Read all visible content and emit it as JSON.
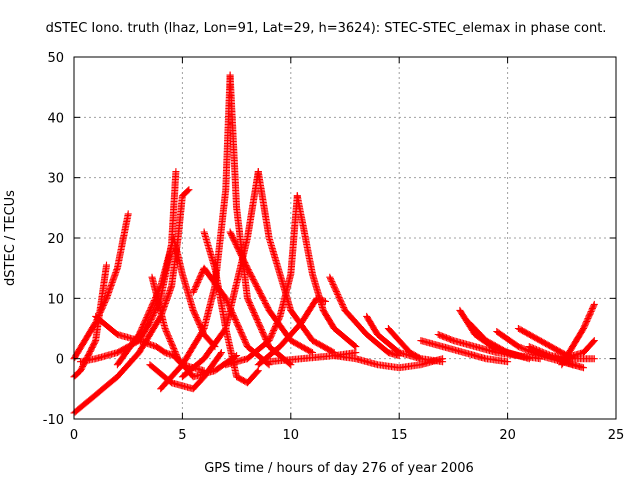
{
  "chart_data": {
    "type": "scatter",
    "title": "dSTEC Iono. truth (lhaz, Lon=91, Lat=29, h=3624): STEC-STEC_elemax in phase cont.",
    "xlabel": "GPS time / hours of day 276 of year 2006",
    "ylabel": "dSTEC  / TECUs",
    "xlim": [
      0,
      25
    ],
    "ylim": [
      -10,
      50
    ],
    "xticks": [
      0,
      5,
      10,
      15,
      20,
      25
    ],
    "yticks": [
      -10,
      0,
      10,
      20,
      30,
      40,
      50
    ],
    "grid": true,
    "marker": "+",
    "color": "#ff0000",
    "series": [
      {
        "x": [
          0.0,
          0.5,
          1.0,
          1.5,
          2.0,
          2.5
        ],
        "y": [
          0.0,
          3.0,
          6.0,
          10.0,
          15.0,
          24.0
        ]
      },
      {
        "x": [
          0.0,
          0.3,
          1.0,
          1.5
        ],
        "y": [
          -3.0,
          -2.0,
          3.0,
          15.5
        ]
      },
      {
        "x": [
          0.0,
          1.0,
          2.0,
          3.0,
          4.0,
          4.5,
          4.8,
          5.0,
          5.3
        ],
        "y": [
          -9.0,
          -6.0,
          -3.0,
          1.0,
          7.0,
          12.0,
          20.0,
          27.0,
          28.0
        ]
      },
      {
        "x": [
          0.3,
          1.0,
          2.0,
          3.0,
          3.5,
          4.0,
          4.5,
          4.7
        ],
        "y": [
          -0.5,
          0.0,
          1.0,
          3.0,
          6.0,
          10.0,
          19.0,
          31.0
        ]
      },
      {
        "x": [
          1.0,
          2.0,
          3.0,
          3.8,
          4.2,
          4.6,
          5.0,
          6.0
        ],
        "y": [
          7.0,
          4.0,
          3.0,
          2.0,
          1.0,
          0.5,
          -1.0,
          -2.0
        ]
      },
      {
        "x": [
          2.0,
          3.0,
          4.0,
          4.6,
          5.0,
          5.5,
          6.0,
          6.5
        ],
        "y": [
          -1.0,
          4.0,
          12.0,
          20.0,
          14.0,
          8.0,
          4.0,
          2.0
        ]
      },
      {
        "x": [
          3.6,
          4.2,
          4.8,
          5.5,
          6.5,
          7.5
        ],
        "y": [
          13.5,
          5.0,
          0.0,
          -3.0,
          -2.0,
          0.5
        ]
      },
      {
        "x": [
          3.5,
          4.5,
          5.5,
          6.0,
          6.8
        ],
        "y": [
          -1.0,
          -4.0,
          -5.0,
          -3.0,
          1.0
        ]
      },
      {
        "x": [
          4.0,
          5.0,
          6.0,
          6.5,
          7.0,
          7.2
        ],
        "y": [
          -5.0,
          -1.0,
          5.0,
          12.0,
          28.0,
          47.0
        ]
      },
      {
        "x": [
          7.2,
          7.5,
          8.0,
          9.0,
          10.0
        ],
        "y": [
          47.0,
          25.0,
          10.0,
          2.0,
          -1.0
        ]
      },
      {
        "x": [
          5.5,
          6.0,
          7.0,
          8.0,
          9.0
        ],
        "y": [
          11.0,
          15.0,
          10.0,
          2.0,
          -1.0
        ]
      },
      {
        "x": [
          5.0,
          6.0,
          7.0,
          8.0,
          8.5
        ],
        "y": [
          -3.0,
          0.0,
          5.0,
          20.0,
          31.0
        ]
      },
      {
        "x": [
          6.0,
          6.5,
          7.0,
          7.5,
          8.0,
          8.5
        ],
        "y": [
          21.0,
          15.0,
          5.0,
          -3.0,
          -4.0,
          -2.0
        ]
      },
      {
        "x": [
          8.5,
          9.0,
          10.0,
          11.0,
          12.0
        ],
        "y": [
          31.0,
          20.0,
          8.0,
          3.0,
          1.0
        ]
      },
      {
        "x": [
          7.2,
          8.0,
          9.0,
          10.0,
          11.0
        ],
        "y": [
          21.0,
          15.0,
          8.0,
          3.0,
          1.0
        ]
      },
      {
        "x": [
          7.0,
          8.0,
          9.0,
          9.5,
          10.0,
          10.3
        ],
        "y": [
          -1.0,
          0.0,
          3.0,
          7.0,
          14.0,
          27.0
        ]
      },
      {
        "x": [
          10.3,
          11.0,
          11.5,
          12.0,
          13.0
        ],
        "y": [
          27.0,
          14.0,
          8.0,
          5.0,
          2.0
        ]
      },
      {
        "x": [
          8.5,
          9.5,
          10.5,
          11.2,
          11.6
        ],
        "y": [
          -1.0,
          2.0,
          6.0,
          10.0,
          9.5
        ]
      },
      {
        "x": [
          11.8,
          12.5,
          13.5,
          14.5,
          15.0
        ],
        "y": [
          13.5,
          8.0,
          4.0,
          1.0,
          0.5
        ]
      },
      {
        "x": [
          9.0,
          10.5,
          12.0,
          13.0
        ],
        "y": [
          -0.5,
          0.0,
          0.5,
          1.0
        ]
      },
      {
        "x": [
          12.0,
          13.0,
          14.0,
          15.0,
          16.0,
          17.0
        ],
        "y": [
          0.5,
          0.0,
          -1.0,
          -1.5,
          -1.0,
          0.0
        ]
      },
      {
        "x": [
          13.5,
          14.0,
          15.0,
          16.0,
          17.0
        ],
        "y": [
          7.0,
          4.0,
          1.0,
          0.0,
          -0.5
        ]
      },
      {
        "x": [
          14.5,
          15.0,
          15.5,
          16.0
        ],
        "y": [
          5.0,
          3.0,
          1.0,
          0.0
        ]
      },
      {
        "x": [
          16.0,
          17.0,
          18.0,
          19.0,
          20.0
        ],
        "y": [
          3.0,
          2.0,
          1.0,
          0.0,
          -0.5
        ]
      },
      {
        "x": [
          16.8,
          17.5,
          18.5,
          19.5,
          20.5
        ],
        "y": [
          4.0,
          3.0,
          2.0,
          1.0,
          0.5
        ]
      },
      {
        "x": [
          17.8,
          18.5,
          19.5,
          20.5,
          21.5
        ],
        "y": [
          8.0,
          4.0,
          1.5,
          0.5,
          0.0
        ]
      },
      {
        "x": [
          18.2,
          19.0,
          20.0,
          21.0
        ],
        "y": [
          6.0,
          3.0,
          1.0,
          0.0
        ]
      },
      {
        "x": [
          19.5,
          20.5,
          21.5,
          22.5,
          23.0
        ],
        "y": [
          4.5,
          2.0,
          0.5,
          -0.5,
          -1.0
        ]
      },
      {
        "x": [
          20.5,
          21.5,
          22.5,
          23.0
        ],
        "y": [
          5.0,
          3.0,
          1.0,
          0.0
        ]
      },
      {
        "x": [
          21.0,
          22.0,
          23.0,
          23.5
        ],
        "y": [
          2.0,
          0.5,
          -1.0,
          -1.5
        ]
      },
      {
        "x": [
          22.5,
          23.0,
          23.5,
          24.0
        ],
        "y": [
          -1.0,
          2.0,
          5.0,
          9.0
        ]
      },
      {
        "x": [
          22.5,
          23.5,
          24.0
        ],
        "y": [
          0.0,
          1.0,
          3.0
        ]
      },
      {
        "x": [
          22.0,
          23.0,
          24.0
        ],
        "y": [
          0.5,
          0.0,
          0.0
        ]
      }
    ]
  }
}
